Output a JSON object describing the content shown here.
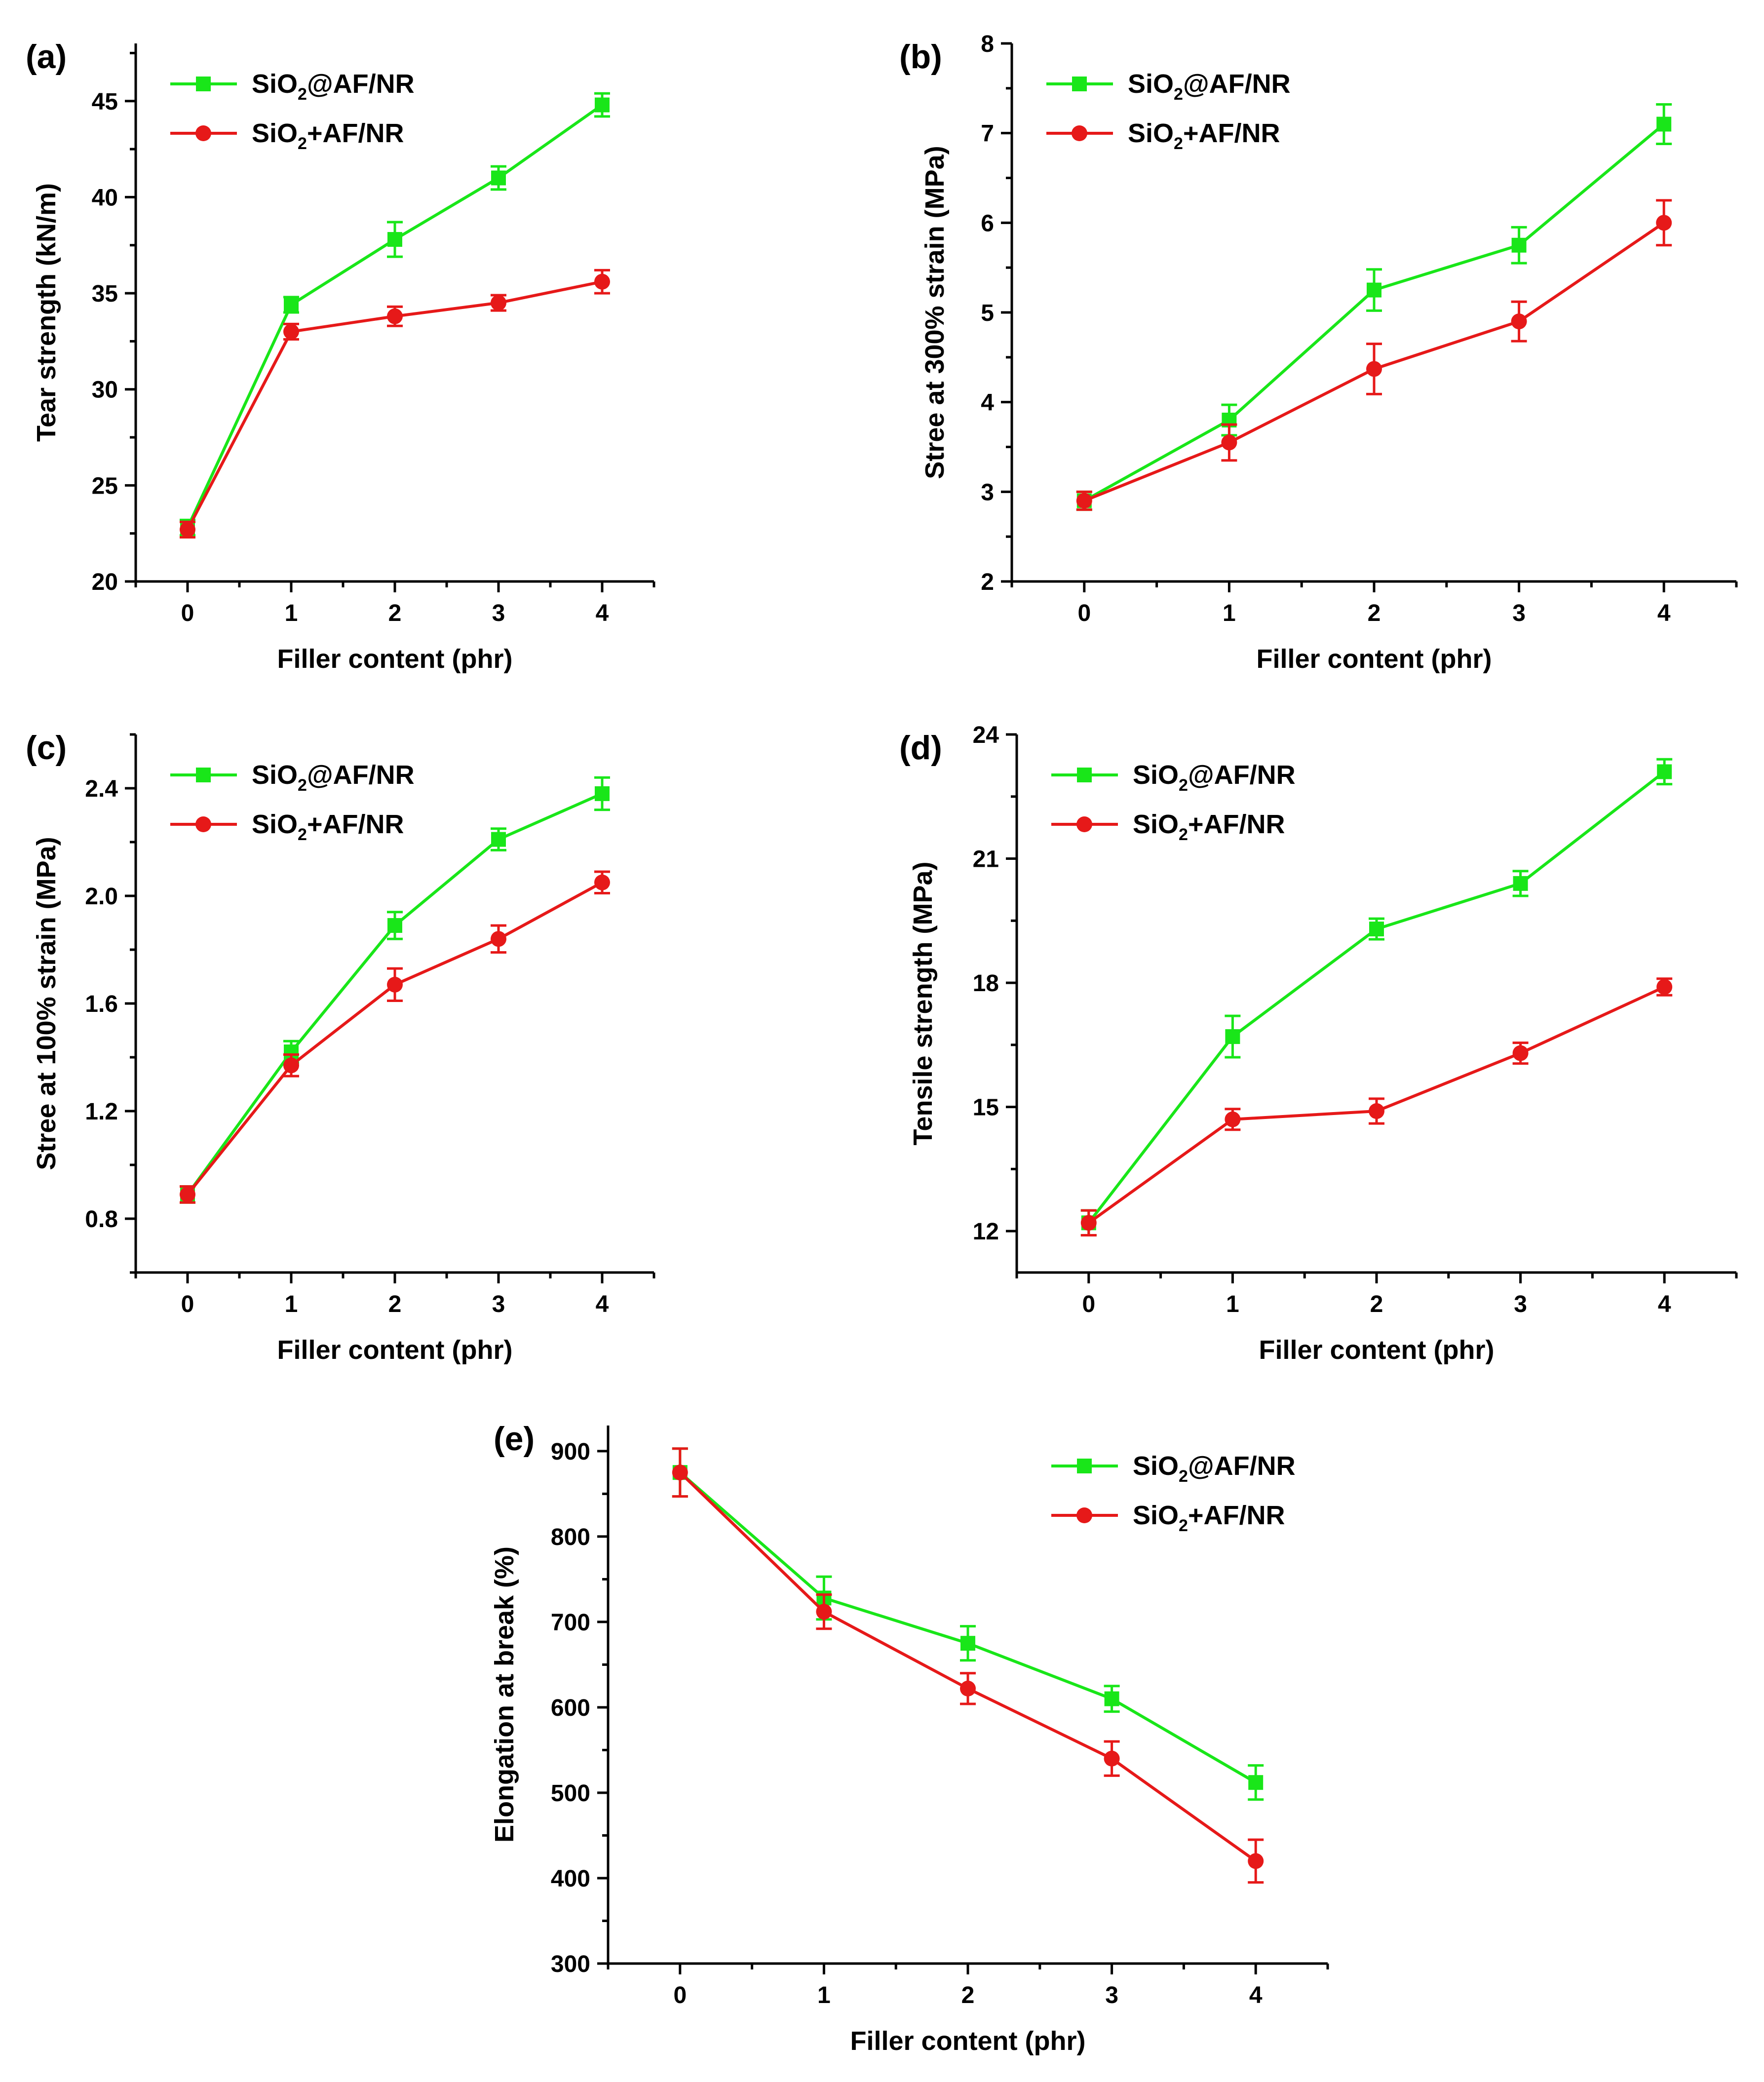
{
  "chart_data": [
    {
      "type": "line",
      "panel": "(a)",
      "title": "",
      "xlabel": "Filler content (phr)",
      "ylabel": "Tear strength (kN/m)",
      "x": [
        0,
        1,
        2,
        3,
        4
      ],
      "xlim": [
        -0.5,
        4.5
      ],
      "ylim": [
        20,
        48
      ],
      "xticks": [
        "0",
        "1",
        "2",
        "3",
        "4"
      ],
      "yticks": [
        20,
        25,
        30,
        35,
        40,
        45
      ],
      "ytick_labels": [
        "20",
        "25",
        "30",
        "35",
        "40",
        "45"
      ],
      "legend_position": "top-left",
      "series": [
        {
          "name": "SiO2@AF/NR",
          "label_main": "SiO",
          "label_sub": "2",
          "label_rest": "@AF/NR",
          "color": "#19e619",
          "marker": "square",
          "values": [
            22.8,
            34.4,
            37.8,
            41.0,
            44.8
          ],
          "errors": [
            0.4,
            0.4,
            0.9,
            0.6,
            0.6
          ]
        },
        {
          "name": "SiO2+AF/NR",
          "label_main": "SiO",
          "label_sub": "2",
          "label_rest": "+AF/NR",
          "color": "#e61919",
          "marker": "circle",
          "values": [
            22.7,
            33.0,
            33.8,
            34.5,
            35.6
          ],
          "errors": [
            0.4,
            0.4,
            0.5,
            0.4,
            0.6
          ]
        }
      ]
    },
    {
      "type": "line",
      "panel": "(b)",
      "title": "",
      "xlabel": "Filler content (phr)",
      "ylabel": "Stree at 300% strain (MPa)",
      "x": [
        0,
        1,
        2,
        3,
        4
      ],
      "xlim": [
        -0.5,
        4.5
      ],
      "ylim": [
        2,
        8
      ],
      "xticks": [
        "0",
        "1",
        "2",
        "3",
        "4"
      ],
      "yticks": [
        2,
        3,
        4,
        5,
        6,
        7,
        8
      ],
      "ytick_labels": [
        "2",
        "3",
        "4",
        "5",
        "6",
        "7",
        "8"
      ],
      "legend_position": "top-left",
      "series": [
        {
          "name": "SiO2@AF/NR",
          "label_main": "SiO",
          "label_sub": "2",
          "label_rest": "@AF/NR",
          "color": "#19e619",
          "marker": "square",
          "values": [
            2.9,
            3.8,
            5.25,
            5.75,
            7.1
          ],
          "errors": [
            0.1,
            0.17,
            0.23,
            0.2,
            0.22
          ]
        },
        {
          "name": "SiO2+AF/NR",
          "label_main": "SiO",
          "label_sub": "2",
          "label_rest": "+AF/NR",
          "color": "#e61919",
          "marker": "circle",
          "values": [
            2.9,
            3.55,
            4.37,
            4.9,
            6.0
          ],
          "errors": [
            0.1,
            0.2,
            0.28,
            0.22,
            0.25
          ]
        }
      ]
    },
    {
      "type": "line",
      "panel": "(c)",
      "title": "",
      "xlabel": "Filler content (phr)",
      "ylabel": "Stree at 100% strain (MPa)",
      "x": [
        0,
        1,
        2,
        3,
        4
      ],
      "xlim": [
        -0.5,
        4.5
      ],
      "ylim": [
        0.6,
        2.6
      ],
      "xticks": [
        "0",
        "1",
        "2",
        "3",
        "4"
      ],
      "yticks": [
        0.8,
        1.2,
        1.6,
        2.0,
        2.4
      ],
      "ytick_labels": [
        "0.8",
        "1.2",
        "1.6",
        "2.0",
        "2.4"
      ],
      "legend_position": "top-left",
      "series": [
        {
          "name": "SiO2@AF/NR",
          "label_main": "SiO",
          "label_sub": "2",
          "label_rest": "@AF/NR",
          "color": "#19e619",
          "marker": "square",
          "values": [
            0.89,
            1.42,
            1.89,
            2.21,
            2.38
          ],
          "errors": [
            0.03,
            0.04,
            0.05,
            0.04,
            0.06
          ]
        },
        {
          "name": "SiO2+AF/NR",
          "label_main": "SiO",
          "label_sub": "2",
          "label_rest": "+AF/NR",
          "color": "#e61919",
          "marker": "circle",
          "values": [
            0.89,
            1.37,
            1.67,
            1.84,
            2.05
          ],
          "errors": [
            0.03,
            0.04,
            0.06,
            0.05,
            0.04
          ]
        }
      ]
    },
    {
      "type": "line",
      "panel": "(d)",
      "title": "",
      "xlabel": "Filler content (phr)",
      "ylabel": "Tensile strength (MPa)",
      "x": [
        0,
        1,
        2,
        3,
        4
      ],
      "xlim": [
        -0.5,
        4.5
      ],
      "ylim": [
        11,
        24
      ],
      "xticks": [
        "0",
        "1",
        "2",
        "3",
        "4"
      ],
      "yticks": [
        12,
        15,
        18,
        21,
        24
      ],
      "ytick_labels": [
        "12",
        "15",
        "18",
        "21",
        "24"
      ],
      "legend_position": "top-left",
      "series": [
        {
          "name": "SiO2@AF/NR",
          "label_main": "SiO",
          "label_sub": "2",
          "label_rest": "@AF/NR",
          "color": "#19e619",
          "marker": "square",
          "values": [
            12.2,
            16.7,
            19.3,
            20.4,
            23.1
          ],
          "errors": [
            0.3,
            0.5,
            0.25,
            0.3,
            0.3
          ]
        },
        {
          "name": "SiO2+AF/NR",
          "label_main": "SiO",
          "label_sub": "2",
          "label_rest": "+AF/NR",
          "color": "#e61919",
          "marker": "circle",
          "values": [
            12.2,
            14.7,
            14.9,
            16.3,
            17.9
          ],
          "errors": [
            0.3,
            0.25,
            0.3,
            0.25,
            0.2
          ]
        }
      ]
    },
    {
      "type": "line",
      "panel": "(e)",
      "title": "",
      "xlabel": "Filler content (phr)",
      "ylabel": "Elongation at break (%)",
      "x": [
        0,
        1,
        2,
        3,
        4
      ],
      "xlim": [
        -0.5,
        4.5
      ],
      "ylim": [
        300,
        930
      ],
      "xticks": [
        "0",
        "1",
        "2",
        "3",
        "4"
      ],
      "yticks": [
        300,
        400,
        500,
        600,
        700,
        800,
        900
      ],
      "ytick_labels": [
        "300",
        "400",
        "500",
        "600",
        "700",
        "800",
        "900"
      ],
      "legend_position": "top-right",
      "series": [
        {
          "name": "SiO2@AF/NR",
          "label_main": "SiO",
          "label_sub": "2",
          "label_rest": "@AF/NR",
          "color": "#19e619",
          "marker": "square",
          "values": [
            875,
            728,
            675,
            610,
            512
          ],
          "errors": [
            28,
            25,
            20,
            15,
            20
          ]
        },
        {
          "name": "SiO2+AF/NR",
          "label_main": "SiO",
          "label_sub": "2",
          "label_rest": "+AF/NR",
          "color": "#e61919",
          "marker": "circle",
          "values": [
            875,
            712,
            622,
            540,
            420
          ],
          "errors": [
            28,
            20,
            18,
            20,
            25
          ]
        }
      ]
    }
  ]
}
